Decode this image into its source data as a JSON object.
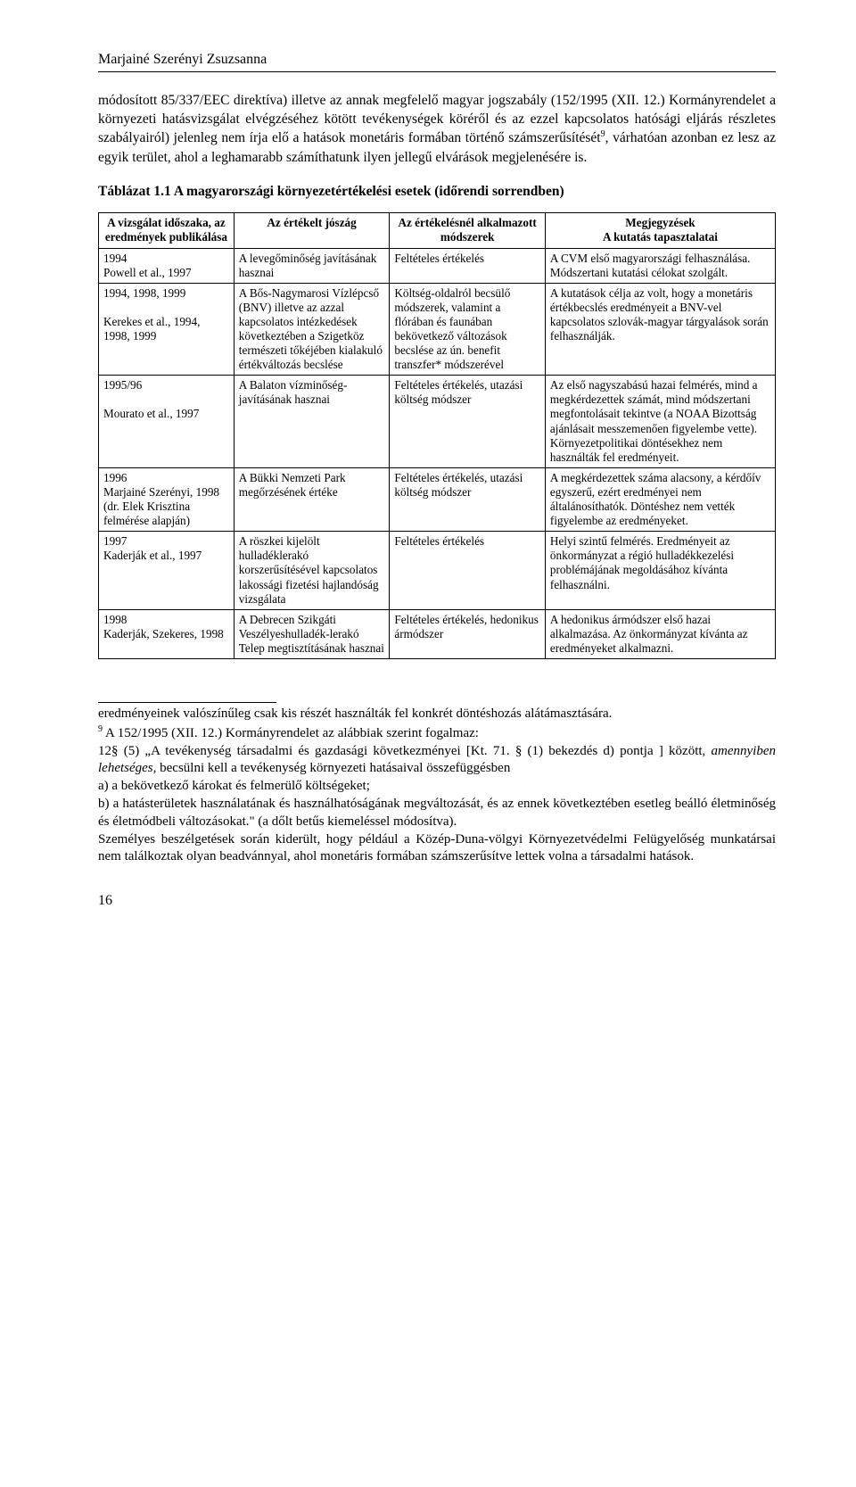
{
  "header": {
    "author": "Marjainé Szerényi Zsuzsanna"
  },
  "intro": {
    "p1a": "módosított 85/337/EEC direktíva) illetve az annak megfelelő magyar jogszabály (152/1995 (XII. 12.) Kormányrendelet a környezeti hatásvizsgálat elvégzéséhez kötött tevékenységek köréről és az ezzel kapcsolatos hatósági eljárás részletes szabályairól) jelenleg nem írja elő a hatások monetáris formában történő számszerűsítését",
    "p1b": ", várhatóan azonban ez lesz az egyik terület, ahol a leghamarabb számíthatunk ilyen jellegű elvárások megjelenésére is.",
    "sup": "9"
  },
  "table": {
    "caption": "Táblázat 1.1 A magyarországi környezetértékelési esetek (időrendi sorrendben)",
    "headers": [
      "A vizsgálat időszaka, az eredmények publikálása",
      "Az értékelt jószág",
      "Az értékelésnél alkalmazott módszerek",
      "Megjegyzések\nA kutatás tapasztalatai"
    ],
    "rows": [
      [
        "1994\nPowell et al., 1997",
        "A levegőminőség javításának hasznai",
        "Feltételes értékelés",
        "A CVM első magyarországi felhasználása. Módszertani kutatási célokat szolgált."
      ],
      [
        "1994, 1998, 1999\n\nKerekes et al., 1994, 1998, 1999",
        "A Bős-Nagymarosi Vízlépcső (BNV) illetve az azzal kapcsolatos intézkedések következtében a Szigetköz természeti tőkéjében kialakuló értékváltozás becslése",
        "Költség-oldalról becsülő módszerek, valamint a flórában és faunában bekövetkező változások becslése az ún. benefit transzfer* módszerével",
        "A kutatások célja az volt, hogy a monetáris értékbecslés eredményeit a BNV-vel kapcsolatos szlovák-magyar tárgyalások során felhasználják."
      ],
      [
        "1995/96\n\nMourato et al., 1997",
        "A Balaton vízminőség-javításának hasznai",
        "Feltételes értékelés, utazási költség módszer",
        "Az első nagyszabású hazai felmérés, mind a megkérdezettek számát, mind módszertani megfontolásait tekintve (a NOAA Bizottság ajánlásait messzemenően figyelembe vette). Környezetpolitikai döntésekhez nem használták fel eredményeit."
      ],
      [
        "1996\nMarjainé Szerényi, 1998 (dr. Elek Krisztina felmérése alapján)",
        "A Bükki Nemzeti Park megőrzésének értéke",
        "Feltételes értékelés, utazási költség módszer",
        "A megkérdezettek száma alacsony, a kérdőív egyszerű, ezért eredményei nem általánosíthatók. Döntéshez nem vették figyelembe az eredményeket."
      ],
      [
        "1997\nKaderják et al., 1997",
        "A röszkei kijelölt hulladéklerakó korszerűsítésével kapcsolatos lakossági fizetési hajlandóság vizsgálata",
        "Feltételes értékelés",
        "Helyi szintű felmérés. Eredményeit az önkormányzat a régió hulladékkezelési problémájának megoldásához kívánta felhasználni."
      ],
      [
        "1998\nKaderják, Szekeres, 1998",
        "A Debrecen Szikgáti Veszélyeshulladék-lerakó Telep megtisztításának hasznai",
        "Feltételes értékelés, hedonikus ármódszer",
        "A hedonikus ármódszer első hazai alkalmazása. Az önkormányzat kívánta az eredményeket alkalmazni."
      ]
    ]
  },
  "footnotes": {
    "lines": [
      "eredményeinek valószínűleg csak kis részét használták fel konkrét döntéshozás alátámasztására.",
      "9 A 152/1995 (XII. 12.) Kormányrendelet az alábbiak szerint fogalmaz:",
      "12§ (5) „A tevékenység társadalmi és gazdasági következményei [Kt. 71. § (1) bekezdés d) pontja ] között, amennyiben lehetséges, becsülni kell a tevékenység környezeti hatásaival összefüggésben",
      "a)  a bekövetkező károkat és felmerülő költségeket;",
      "b) a hatásterületek használatának és használhatóságának megváltozását, és az ennek következtében esetleg beálló életminőség és életmódbeli változásokat.\" (a dőlt betűs kiemeléssel módosítva).",
      "Személyes beszélgetések során kiderült, hogy például a Közép-Duna-völgyi Környezetvédelmi Felügyelőség munkatársai nem találkoztak olyan beadvánnyal, ahol monetáris formában számszerűsítve lettek volna a társadalmi hatások."
    ]
  },
  "page": {
    "num": "16"
  }
}
